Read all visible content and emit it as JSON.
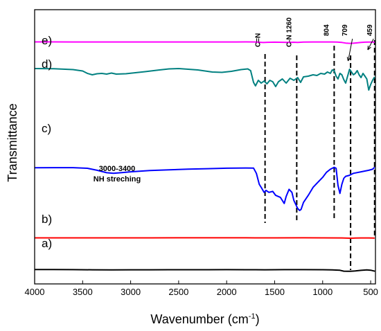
{
  "chart_data": {
    "type": "line",
    "xlabel": "Wavenumber (cm",
    "xlabel_sup": "-1",
    "xlabel_end": ")",
    "ylabel": "Transmittance",
    "xlim": [
      4000,
      450
    ],
    "x_reversed": true,
    "xticks": [
      4000,
      3500,
      3000,
      2500,
      2000,
      1500,
      1000,
      500
    ],
    "yticks_shown": false,
    "grid": false,
    "legend": "none",
    "series": [
      {
        "name": "a)",
        "color": "#000000",
        "points": [
          [
            4000,
            5.0
          ],
          [
            3800,
            4.9
          ],
          [
            3600,
            4.6
          ],
          [
            3400,
            4.3
          ],
          [
            3200,
            4.1
          ],
          [
            3000,
            4.2
          ],
          [
            2800,
            4.3
          ],
          [
            2600,
            4.45
          ],
          [
            2400,
            4.5
          ],
          [
            2200,
            4.55
          ],
          [
            2000,
            4.6
          ],
          [
            1800,
            4.5
          ],
          [
            1700,
            4.4
          ],
          [
            1600,
            4.2
          ],
          [
            1500,
            4.5
          ],
          [
            1400,
            4.6
          ],
          [
            1200,
            4.7
          ],
          [
            1000,
            4.5
          ],
          [
            900,
            4.0
          ],
          [
            820,
            3.0
          ],
          [
            780,
            0.8
          ],
          [
            740,
            0.3
          ],
          [
            709,
            0.5
          ],
          [
            660,
            1.2
          ],
          [
            600,
            2.8
          ],
          [
            540,
            3.9
          ],
          [
            500,
            3.3
          ],
          [
            470,
            1.5
          ],
          [
            455,
            0.5
          ]
        ]
      },
      {
        "name": "b)",
        "color": "#ff0000",
        "points": [
          [
            4000,
            10.5
          ],
          [
            3600,
            10.5
          ],
          [
            3200,
            10.5
          ],
          [
            2800,
            10.6
          ],
          [
            2400,
            10.7
          ],
          [
            2330,
            11.0
          ],
          [
            2200,
            10.7
          ],
          [
            1800,
            10.7
          ],
          [
            1700,
            10.6
          ],
          [
            1620,
            10.3
          ],
          [
            1500,
            10.6
          ],
          [
            1200,
            10.7
          ],
          [
            1000,
            10.6
          ],
          [
            800,
            10.0
          ],
          [
            740,
            8.8
          ],
          [
            709,
            8.4
          ],
          [
            660,
            9.3
          ],
          [
            600,
            10.1
          ],
          [
            520,
            10.2
          ],
          [
            480,
            9.5
          ],
          [
            459,
            8.6
          ]
        ]
      },
      {
        "name": "c)",
        "color": "#0000ff",
        "points": [
          [
            4000,
            60.5
          ],
          [
            3800,
            60.6
          ],
          [
            3600,
            60.6
          ],
          [
            3450,
            60.0
          ],
          [
            3350,
            58.0
          ],
          [
            3250,
            55.6
          ],
          [
            3180,
            55.0
          ],
          [
            3100,
            55.6
          ],
          [
            3000,
            56.5
          ],
          [
            2800,
            57.8
          ],
          [
            2600,
            58.4
          ],
          [
            2400,
            59.2
          ],
          [
            2200,
            59.6
          ],
          [
            2000,
            60.1
          ],
          [
            1800,
            60.3
          ],
          [
            1720,
            60.2
          ],
          [
            1690,
            55.0
          ],
          [
            1660,
            44.0
          ],
          [
            1640,
            41.0
          ],
          [
            1610,
            36.0
          ],
          [
            1590,
            38.0
          ],
          [
            1560,
            36.0
          ],
          [
            1520,
            37.0
          ],
          [
            1490,
            33.0
          ],
          [
            1440,
            31.0
          ],
          [
            1400,
            25.0
          ],
          [
            1380,
            32.0
          ],
          [
            1350,
            39.0
          ],
          [
            1320,
            36.0
          ],
          [
            1300,
            28.0
          ],
          [
            1260,
            20.0
          ],
          [
            1240,
            18.0
          ],
          [
            1225,
            19.0
          ],
          [
            1200,
            26.0
          ],
          [
            1150,
            33.0
          ],
          [
            1100,
            41.0
          ],
          [
            1050,
            46.0
          ],
          [
            1000,
            51.0
          ],
          [
            960,
            56.0
          ],
          [
            920,
            59.0
          ],
          [
            880,
            61.0
          ],
          [
            860,
            60.0
          ],
          [
            840,
            43.0
          ],
          [
            820,
            35.0
          ],
          [
            800,
            44.0
          ],
          [
            780,
            50.0
          ],
          [
            760,
            52.0
          ],
          [
            720,
            53.0
          ],
          [
            680,
            55.0
          ],
          [
            600,
            56.5
          ],
          [
            520,
            58.0
          ],
          [
            480,
            59.0
          ],
          [
            459,
            61.0
          ]
        ]
      },
      {
        "name": "d)",
        "color": "#008080",
        "points": [
          [
            4000,
            91.0
          ],
          [
            3800,
            90.8
          ],
          [
            3600,
            89.5
          ],
          [
            3500,
            87.5
          ],
          [
            3450,
            84.0
          ],
          [
            3400,
            82.0
          ],
          [
            3350,
            83.5
          ],
          [
            3300,
            84.0
          ],
          [
            3250,
            83.0
          ],
          [
            3200,
            84.5
          ],
          [
            3150,
            83.0
          ],
          [
            3050,
            83.5
          ],
          [
            2950,
            85.0
          ],
          [
            2850,
            86.5
          ],
          [
            2700,
            89.0
          ],
          [
            2600,
            90.5
          ],
          [
            2500,
            91.0
          ],
          [
            2300,
            89.0
          ],
          [
            2150,
            86.0
          ],
          [
            2050,
            85.5
          ],
          [
            1950,
            87.0
          ],
          [
            1850,
            89.5
          ],
          [
            1780,
            90.5
          ],
          [
            1750,
            88.0
          ],
          [
            1720,
            71.0
          ],
          [
            1700,
            66.0
          ],
          [
            1670,
            74.0
          ],
          [
            1640,
            70.0
          ],
          [
            1610,
            73.0
          ],
          [
            1580,
            69.0
          ],
          [
            1550,
            74.0
          ],
          [
            1520,
            72.0
          ],
          [
            1490,
            65.0
          ],
          [
            1460,
            72.0
          ],
          [
            1420,
            76.0
          ],
          [
            1380,
            70.0
          ],
          [
            1340,
            77.0
          ],
          [
            1300,
            74.0
          ],
          [
            1260,
            78.0
          ],
          [
            1230,
            71.0
          ],
          [
            1200,
            79.0
          ],
          [
            1150,
            80.0
          ],
          [
            1100,
            82.0
          ],
          [
            1060,
            81.0
          ],
          [
            1020,
            84.0
          ],
          [
            980,
            83.0
          ],
          [
            950,
            86.0
          ],
          [
            920,
            84.0
          ],
          [
            900,
            89.0
          ],
          [
            880,
            88.0
          ],
          [
            860,
            80.0
          ],
          [
            840,
            76.0
          ],
          [
            820,
            84.0
          ],
          [
            800,
            82.0
          ],
          [
            780,
            75.0
          ],
          [
            760,
            70.0
          ],
          [
            740,
            80.0
          ],
          [
            720,
            90.0
          ],
          [
            700,
            86.0
          ],
          [
            680,
            82.0
          ],
          [
            660,
            84.0
          ],
          [
            640,
            88.0
          ],
          [
            620,
            82.0
          ],
          [
            600,
            78.0
          ],
          [
            580,
            84.0
          ],
          [
            560,
            80.0
          ],
          [
            540,
            76.0
          ],
          [
            520,
            60.0
          ],
          [
            500,
            68.0
          ],
          [
            480,
            74.0
          ],
          [
            459,
            79.0
          ]
        ]
      },
      {
        "name": "e)",
        "color": "#ff00ff",
        "points": [
          [
            4000,
            98.5
          ],
          [
            3800,
            98.5
          ],
          [
            3600,
            98.4
          ],
          [
            3400,
            98.2
          ],
          [
            3200,
            98.3
          ],
          [
            3000,
            98.3
          ],
          [
            2800,
            98.3
          ],
          [
            2600,
            98.3
          ],
          [
            2400,
            98.3
          ],
          [
            2200,
            98.3
          ],
          [
            2000,
            98.4
          ],
          [
            1900,
            98.4
          ],
          [
            1800,
            98.5
          ],
          [
            1700,
            98.3
          ],
          [
            1650,
            97.0
          ],
          [
            1620,
            96.2
          ],
          [
            1580,
            97.0
          ],
          [
            1500,
            97.5
          ],
          [
            1400,
            97.0
          ],
          [
            1350,
            96.5
          ],
          [
            1300,
            97.3
          ],
          [
            1260,
            96.8
          ],
          [
            1200,
            97.8
          ],
          [
            1100,
            98.2
          ],
          [
            1000,
            98.4
          ],
          [
            900,
            98.3
          ],
          [
            850,
            98.0
          ],
          [
            800,
            96.5
          ],
          [
            760,
            94.0
          ],
          [
            730,
            93.0
          ],
          [
            709,
            92.8
          ],
          [
            680,
            93.2
          ],
          [
            650,
            94.5
          ],
          [
            600,
            96.5
          ],
          [
            560,
            97.5
          ],
          [
            520,
            98.0
          ],
          [
            480,
            97.8
          ],
          [
            459,
            97.0
          ]
        ]
      }
    ],
    "annotations": [
      {
        "text": "C=N",
        "x": 1600
      },
      {
        "text": "C-N 1260",
        "x": 1260
      },
      {
        "text": "804",
        "x": 880
      },
      {
        "text": "709",
        "x": 709
      },
      {
        "text": "459",
        "x": 459
      }
    ],
    "band_label_1": "3000-3400",
    "band_label_2": "NH streching"
  }
}
